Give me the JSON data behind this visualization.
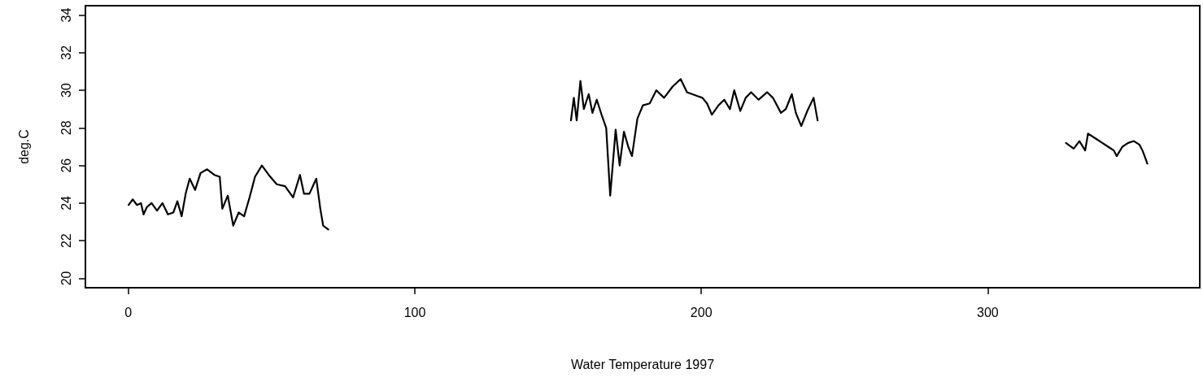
{
  "chart_data": {
    "type": "line",
    "xlabel": "Water Temperature 1997",
    "ylabel": "deg.C",
    "x": [
      0.1,
      1.5,
      3,
      4.4,
      5.3,
      6.5,
      8.1,
      10,
      11.9,
      13.8,
      15.7,
      17.1,
      18.6,
      20,
      21.4,
      23.3,
      25.2,
      27.5,
      30,
      31.9,
      32.8,
      34.7,
      36.6,
      38.5,
      40.4,
      42.3,
      44.2,
      46.6,
      49,
      51.8,
      54.7,
      57.5,
      59.9,
      61.3,
      63.2,
      65.6,
      67,
      68,
      69.8,
      112,
      154.5,
      155.5,
      156.5,
      157.8,
      159,
      160.7,
      162,
      163.5,
      165.4,
      166.8,
      168.2,
      170.1,
      171.5,
      173,
      174.5,
      175.8,
      177.7,
      179.6,
      182,
      184.3,
      187,
      190,
      192.8,
      195,
      198.5,
      200.4,
      202,
      203.7,
      206,
      208,
      210,
      211.5,
      213.6,
      215.5,
      217.4,
      220,
      223,
      225,
      227.8,
      229.5,
      231.6,
      233,
      234.9,
      237,
      239.2,
      240.6,
      285,
      327.3,
      330,
      332,
      334,
      335,
      338,
      340,
      342,
      344,
      345,
      347,
      349,
      351,
      353,
      354,
      355,
      355.7
    ],
    "values": [
      23.9,
      24.2,
      23.9,
      24.0,
      23.4,
      23.8,
      24.0,
      23.6,
      24.0,
      23.4,
      23.5,
      24.1,
      23.3,
      24.5,
      25.3,
      24.7,
      25.6,
      25.8,
      25.5,
      25.4,
      23.7,
      24.4,
      22.8,
      23.5,
      23.3,
      24.3,
      25.4,
      26.0,
      25.5,
      25.0,
      24.9,
      24.3,
      25.5,
      24.5,
      24.5,
      25.3,
      23.7,
      22.8,
      22.6,
      null,
      28.4,
      29.6,
      28.4,
      30.5,
      29.0,
      29.8,
      28.8,
      29.5,
      28.6,
      28.0,
      24.4,
      27.9,
      26.0,
      27.8,
      27.0,
      26.5,
      28.5,
      29.2,
      29.3,
      30.0,
      29.6,
      30.2,
      30.6,
      29.9,
      29.7,
      29.6,
      29.3,
      28.7,
      29.2,
      29.5,
      29.0,
      30.0,
      28.9,
      29.6,
      29.9,
      29.5,
      29.9,
      29.6,
      28.8,
      29.0,
      29.8,
      28.8,
      28.1,
      28.9,
      29.6,
      28.4,
      null,
      27.2,
      26.9,
      27.3,
      26.8,
      27.7,
      27.4,
      27.2,
      27.0,
      26.8,
      26.5,
      27.0,
      27.2,
      27.3,
      27.1,
      26.8,
      26.4,
      26.1
    ],
    "color": "#000000",
    "line_style": "solid",
    "marker": "none",
    "xlim": [
      -15,
      374
    ],
    "ylim": [
      19.5,
      34.5
    ],
    "xticks": [
      0,
      100,
      200,
      300
    ],
    "yticks": [
      20,
      22,
      24,
      26,
      28,
      30,
      32,
      34
    ]
  }
}
